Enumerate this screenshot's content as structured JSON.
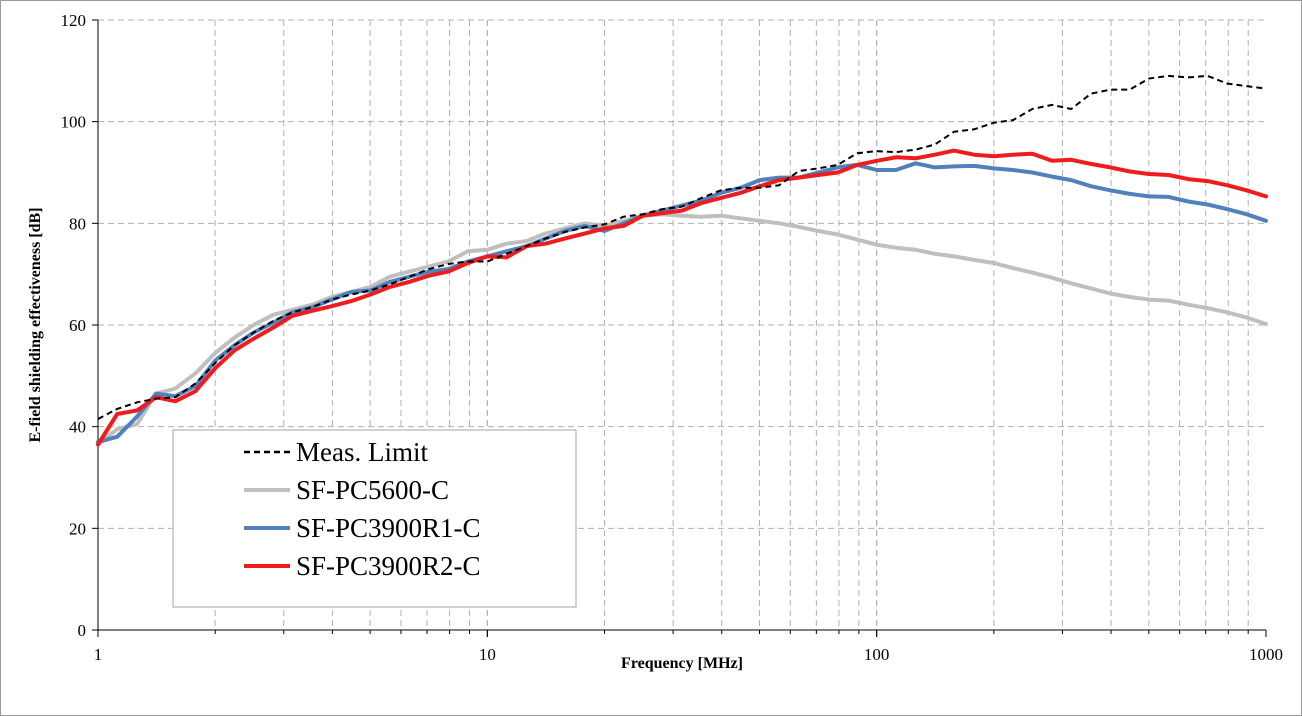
{
  "chart_data": {
    "type": "line",
    "xlabel": "Frequency [MHz]",
    "ylabel": "E-field shielding effectiveness [dB]",
    "x_scale": "log",
    "xlim": [
      1,
      1000
    ],
    "ylim": [
      0,
      120
    ],
    "x_tick_labels": [
      "1",
      "10",
      "100",
      "1000"
    ],
    "y_tick_labels": [
      "0",
      "20",
      "40",
      "60",
      "80",
      "100",
      "120"
    ],
    "y_ticks": [
      0,
      20,
      40,
      60,
      80,
      100,
      120
    ],
    "grid": true,
    "legend_position": "lower-left",
    "series": [
      {
        "name": "Meas. Limit",
        "color": "#000000",
        "style": "dashed",
        "x": [
          1,
          1.12,
          1.26,
          1.41,
          1.58,
          1.78,
          2,
          2.24,
          2.51,
          2.82,
          3.16,
          3.55,
          3.98,
          4.47,
          5.01,
          5.62,
          6.31,
          7.08,
          7.94,
          8.91,
          10,
          11.2,
          12.6,
          14.1,
          15.8,
          17.8,
          20,
          22.4,
          25.1,
          28.2,
          31.6,
          35.5,
          39.8,
          44.7,
          50.1,
          56.2,
          63.1,
          70.8,
          79.4,
          89.1,
          100,
          112,
          126,
          141,
          158,
          178,
          200,
          224,
          251,
          282,
          316,
          355,
          398,
          447,
          501,
          562,
          631,
          708,
          794,
          891,
          1000
        ],
        "values": [
          41.5,
          43.5,
          44.8,
          45.5,
          45.8,
          48.5,
          52.5,
          56,
          58.5,
          60.8,
          62.5,
          63.5,
          65,
          66,
          66.8,
          68,
          69.5,
          71,
          72,
          72.5,
          72.5,
          74,
          75.5,
          77,
          78.3,
          79.2,
          79.8,
          81.3,
          81.8,
          82.8,
          83.3,
          85,
          86.5,
          87,
          87,
          87.5,
          90.3,
          90.8,
          91.5,
          93.8,
          94.2,
          94,
          94.5,
          95.5,
          98,
          98.5,
          99.8,
          100.3,
          102.5,
          103.3,
          102.5,
          105.5,
          106.3,
          106.3,
          108.5,
          109,
          108.7,
          109,
          107.5,
          107,
          106.5
        ]
      },
      {
        "name": "SF-PC5600-C",
        "color": "#bfbfbf",
        "style": "solid",
        "x": [
          1,
          1.12,
          1.26,
          1.41,
          1.58,
          1.78,
          2,
          2.24,
          2.51,
          2.82,
          3.16,
          3.55,
          3.98,
          4.47,
          5.01,
          5.62,
          6.31,
          7.08,
          7.94,
          8.91,
          10,
          11.2,
          12.6,
          14.1,
          15.8,
          17.8,
          20,
          22.4,
          25.1,
          28.2,
          31.6,
          35.5,
          39.8,
          44.7,
          50.1,
          56.2,
          63.1,
          70.8,
          79.4,
          89.1,
          100,
          112,
          126,
          141,
          158,
          178,
          200,
          224,
          251,
          282,
          316,
          355,
          398,
          447,
          501,
          562,
          631,
          708,
          794,
          891,
          1000
        ],
        "values": [
          36.5,
          39.5,
          40.5,
          46.5,
          47.5,
          50.5,
          54.5,
          57.5,
          60,
          62,
          63,
          64,
          65.5,
          66.5,
          67.5,
          69.5,
          70.5,
          71.5,
          72.5,
          74.5,
          74.8,
          76,
          76.5,
          78,
          79,
          80,
          79.5,
          80.5,
          81.5,
          81.8,
          81.5,
          81.3,
          81.5,
          81,
          80.5,
          80,
          79.3,
          78.5,
          77.8,
          76.8,
          75.8,
          75.2,
          74.8,
          74,
          73.5,
          72.8,
          72.2,
          71.2,
          70.3,
          69.3,
          68.2,
          67.2,
          66.2,
          65.5,
          65,
          64.8,
          64,
          63.3,
          62.5,
          61.5,
          60.2
        ]
      },
      {
        "name": "SF-PC3900R1-C",
        "color": "#4f81bd",
        "style": "solid",
        "x": [
          1,
          1.12,
          1.26,
          1.41,
          1.58,
          1.78,
          2,
          2.24,
          2.51,
          2.82,
          3.16,
          3.55,
          3.98,
          4.47,
          5.01,
          5.62,
          6.31,
          7.08,
          7.94,
          8.91,
          10,
          11.2,
          12.6,
          14.1,
          15.8,
          17.8,
          20,
          22.4,
          25.1,
          28.2,
          31.6,
          35.5,
          39.8,
          44.7,
          50.1,
          56.2,
          63.1,
          70.8,
          79.4,
          89.1,
          100,
          112,
          126,
          141,
          158,
          178,
          200,
          224,
          251,
          282,
          316,
          355,
          398,
          447,
          501,
          562,
          631,
          708,
          794,
          891,
          1000
        ],
        "values": [
          37,
          38,
          42,
          46.5,
          46,
          48,
          53,
          56,
          58.5,
          60.5,
          62.5,
          63.5,
          65,
          66.5,
          66.8,
          68.5,
          69.5,
          70.5,
          71,
          72.5,
          73.5,
          74.5,
          75.5,
          77,
          78.5,
          79.5,
          78.5,
          80,
          81.5,
          82.5,
          83.5,
          84.5,
          86,
          87,
          88.5,
          89,
          89,
          90,
          91,
          91.5,
          90.5,
          90.5,
          91.8,
          91,
          91.2,
          91.3,
          90.8,
          90.5,
          90,
          89.2,
          88.5,
          87.3,
          86.5,
          85.8,
          85.3,
          85.2,
          84.3,
          83.7,
          82.8,
          81.8,
          80.5
        ]
      },
      {
        "name": "SF-PC3900R2-C",
        "color": "#ee1c1c",
        "style": "solid",
        "x": [
          1,
          1.12,
          1.26,
          1.41,
          1.58,
          1.78,
          2,
          2.24,
          2.51,
          2.82,
          3.16,
          3.55,
          3.98,
          4.47,
          5.01,
          5.62,
          6.31,
          7.08,
          7.94,
          8.91,
          10,
          11.2,
          12.6,
          14.1,
          15.8,
          17.8,
          20,
          22.4,
          25.1,
          28.2,
          31.6,
          35.5,
          39.8,
          44.7,
          50.1,
          56.2,
          63.1,
          70.8,
          79.4,
          89.1,
          100,
          112,
          126,
          141,
          158,
          178,
          200,
          224,
          251,
          282,
          316,
          355,
          398,
          447,
          501,
          562,
          631,
          708,
          794,
          891,
          1000
        ],
        "values": [
          36.5,
          42.5,
          43.2,
          45.8,
          45,
          47,
          51.5,
          55,
          57.3,
          59.5,
          61.8,
          62.8,
          63.7,
          64.7,
          66,
          67.5,
          68.5,
          69.7,
          70.5,
          72.2,
          73.5,
          73.3,
          75.5,
          76,
          77,
          78,
          79,
          79.5,
          81.5,
          82,
          82.5,
          84,
          85,
          86,
          87.3,
          88.5,
          89,
          89.5,
          90,
          91.5,
          92.3,
          93,
          92.8,
          93.5,
          94.3,
          93.5,
          93.2,
          93.5,
          93.7,
          92.3,
          92.5,
          91.7,
          91,
          90.2,
          89.7,
          89.5,
          88.7,
          88.3,
          87.5,
          86.5,
          85.3
        ]
      }
    ]
  }
}
